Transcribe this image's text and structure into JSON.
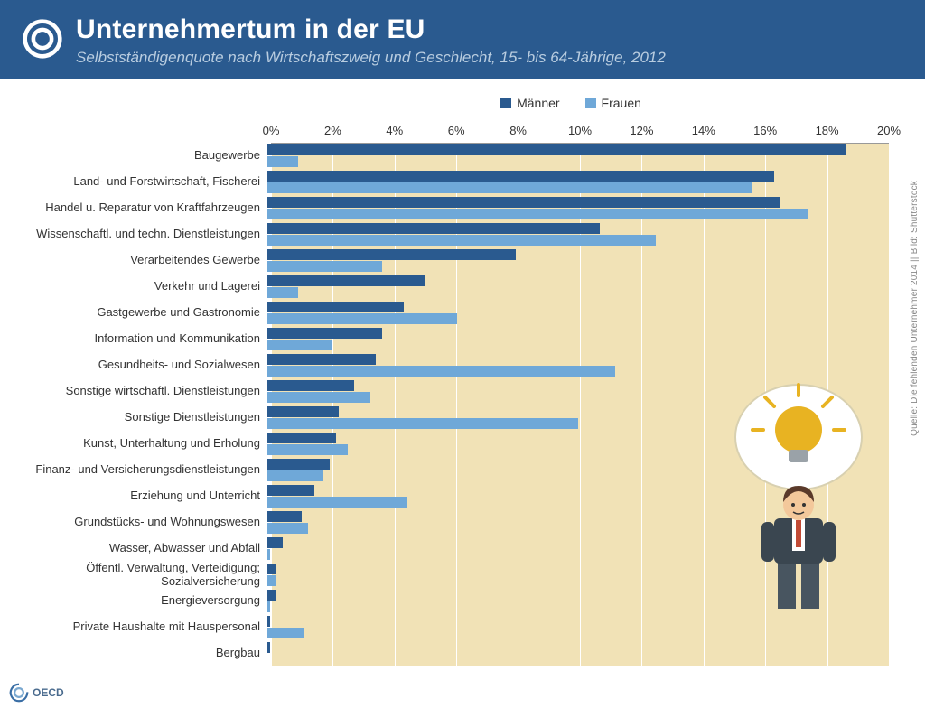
{
  "header": {
    "title": "Unternehmertum in der EU",
    "subtitle": "Selbstständigenquote nach Wirtschaftszweig und Geschlecht, 15- bis 64-Jährige, 2012"
  },
  "legend": {
    "series1": "Männer",
    "series2": "Frauen"
  },
  "chart": {
    "type": "bar",
    "orientation": "horizontal",
    "xlim": [
      0,
      20
    ],
    "xtick_step": 2,
    "xtick_suffix": "%",
    "background_color": "#f1e2b6",
    "grid_color": "#ffffff",
    "label_fontsize": 13,
    "tick_fontsize": 13,
    "series_colors": {
      "m": "#2a5a8f",
      "f": "#6fa8d8"
    },
    "categories": [
      {
        "label": "Baugewerbe",
        "m": 18.6,
        "f": 1.0
      },
      {
        "label": "Land- und Forstwirtschaft, Fischerei",
        "m": 16.3,
        "f": 15.6
      },
      {
        "label": "Handel u. Reparatur von Kraftfahrzeugen",
        "m": 16.5,
        "f": 17.4
      },
      {
        "label": "Wissenschaftl. und techn. Dienstleistungen",
        "m": 10.7,
        "f": 12.5
      },
      {
        "label": "Verarbeitendes Gewerbe",
        "m": 8.0,
        "f": 3.7
      },
      {
        "label": "Verkehr und Lagerei",
        "m": 5.1,
        "f": 1.0
      },
      {
        "label": "Gastgewerbe und Gastronomie",
        "m": 4.4,
        "f": 6.1
      },
      {
        "label": "Information und Kommunikation",
        "m": 3.7,
        "f": 2.1
      },
      {
        "label": "Gesundheits- und Sozialwesen",
        "m": 3.5,
        "f": 11.2
      },
      {
        "label": "Sonstige wirtschaftl. Dienstleistungen",
        "m": 2.8,
        "f": 3.3
      },
      {
        "label": "Sonstige Dienstleistungen",
        "m": 2.3,
        "f": 10.0
      },
      {
        "label": "Kunst, Unterhaltung und Erholung",
        "m": 2.2,
        "f": 2.6
      },
      {
        "label": "Finanz- und Versicherungsdienstleistungen",
        "m": 2.0,
        "f": 1.8
      },
      {
        "label": "Erziehung und Unterricht",
        "m": 1.5,
        "f": 4.5
      },
      {
        "label": "Grundstücks- und Wohnungswesen",
        "m": 1.1,
        "f": 1.3
      },
      {
        "label": "Wasser, Abwasser und Abfall",
        "m": 0.5,
        "f": 0.1
      },
      {
        "label": "Öffentl. Verwaltung, Verteidigung; Sozialversicherung",
        "m": 0.3,
        "f": 0.3
      },
      {
        "label": "Energieversorgung",
        "m": 0.3,
        "f": 0.1
      },
      {
        "label": "Private Haushalte mit Hauspersonal",
        "m": 0.1,
        "f": 1.2
      },
      {
        "label": "Bergbau",
        "m": 0.1,
        "f": 0.0
      }
    ]
  },
  "illustration": {
    "bulb_color": "#e8b322",
    "bulb_base_color": "#9aa2a8",
    "bubble_fill": "#ffffff",
    "bubble_stroke": "#d8d0b0",
    "man_hair": "#5a3a2a",
    "man_skin": "#f3c89b",
    "man_suit": "#3a4650",
    "man_shirt": "#ffffff",
    "man_tie": "#c24b36",
    "man_pants": "#485560"
  },
  "source_side": "Quelle: Die fehlenden Unternehmer 2014 || Bild: Shutterstock",
  "footer_label": "OECD"
}
